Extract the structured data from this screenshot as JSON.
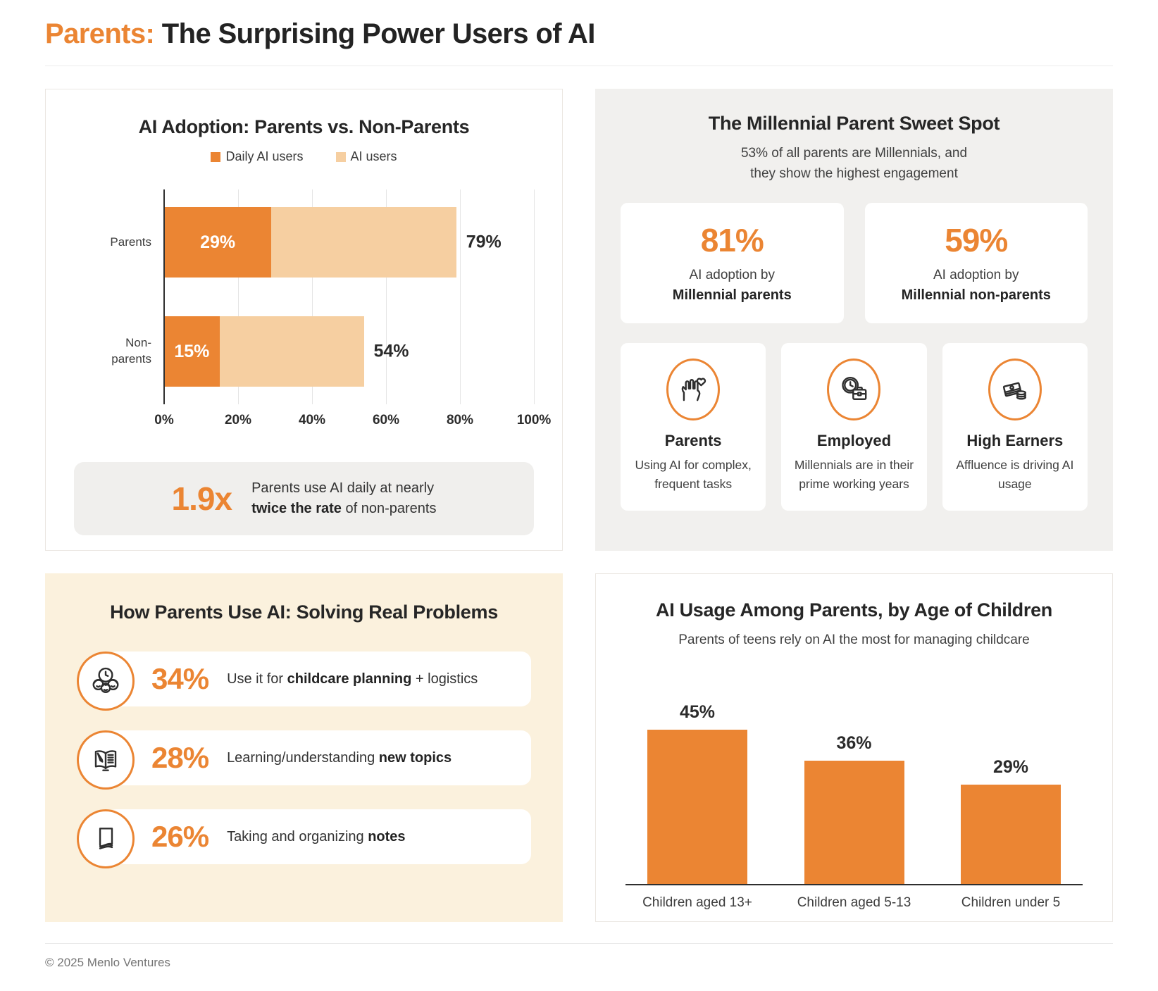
{
  "header": {
    "title_accent": "Parents:",
    "title_rest": " The Surprising Power Users of AI"
  },
  "adoption": {
    "title": "AI Adoption: Parents vs. Non-Parents",
    "legend": [
      {
        "label": "Daily AI users",
        "color": "#EB8533"
      },
      {
        "label": "AI users",
        "color": "#F6CFA1"
      }
    ],
    "callout": {
      "value": "1.9x",
      "line1": "Parents use AI daily at nearly",
      "bold": "twice the rate",
      "post": " of non-parents"
    }
  },
  "millennial": {
    "title": "The Millennial Parent Sweet Spot",
    "subtitle_line1": "53% of all parents are Millennials, and",
    "subtitle_line2": "they show the highest engagement",
    "stats": [
      {
        "value": "81%",
        "line": "AI adoption by",
        "bold": "Millennial parents"
      },
      {
        "value": "59%",
        "line": "AI adoption by",
        "bold": "Millennial non-parents"
      }
    ],
    "traits": [
      {
        "icon": "hand-heart-icon",
        "title": "Parents",
        "desc": "Using AI for complex, frequent tasks"
      },
      {
        "icon": "clock-briefcase-icon",
        "title": "Employed",
        "desc": "Millennials are in their prime working years"
      },
      {
        "icon": "money-icon",
        "title": "High Earners",
        "desc": "Affluence is driving AI usage"
      }
    ]
  },
  "usage": {
    "title": "How Parents Use AI: Solving Real Problems",
    "rows": [
      {
        "icon": "family-clock-icon",
        "pct": "34%",
        "pre": "Use it for ",
        "bold": "childcare planning",
        "post": " + logistics"
      },
      {
        "icon": "book-pencil-icon",
        "pct": "28%",
        "pre": "Learning/understanding ",
        "bold": "new topics",
        "post": ""
      },
      {
        "icon": "notes-icon",
        "pct": "26%",
        "pre": "Taking and organizing ",
        "bold": "notes",
        "post": ""
      }
    ]
  },
  "age_usage": {
    "title": "AI Usage Among Parents, by Age of Children",
    "subtitle": "Parents of teens rely on AI the most for managing childcare"
  },
  "footer": {
    "copyright": "© 2025 Menlo Ventures"
  },
  "colors": {
    "orange": "#EB8533",
    "orange_light": "#F6CFA1",
    "dark": "#2b2b2b"
  },
  "chart_data": [
    {
      "type": "bar",
      "orientation": "horizontal",
      "stacked": true,
      "title": "AI Adoption: Parents vs. Non-Parents",
      "categories": [
        "Parents",
        "Non-parents"
      ],
      "series": [
        {
          "name": "Daily AI users",
          "values": [
            29,
            15
          ]
        },
        {
          "name": "AI users",
          "values": [
            79,
            54
          ]
        }
      ],
      "value_labels": {
        "inside": [
          "29%",
          "15%"
        ],
        "outside": [
          "79%",
          "54%"
        ]
      },
      "xlim": [
        0,
        100
      ],
      "xticks": [
        "0%",
        "20%",
        "40%",
        "60%",
        "80%",
        "100%"
      ],
      "grid": true,
      "legend_position": "top"
    },
    {
      "type": "bar",
      "orientation": "vertical",
      "title": "AI Usage Among Parents, by Age of Children",
      "categories": [
        "Children aged 13+",
        "Children aged 5-13",
        "Children under 5"
      ],
      "values": [
        45,
        36,
        29
      ],
      "value_labels": [
        "45%",
        "36%",
        "29%"
      ],
      "ylim": [
        0,
        50
      ],
      "grid": false,
      "legend_position": "none"
    }
  ]
}
